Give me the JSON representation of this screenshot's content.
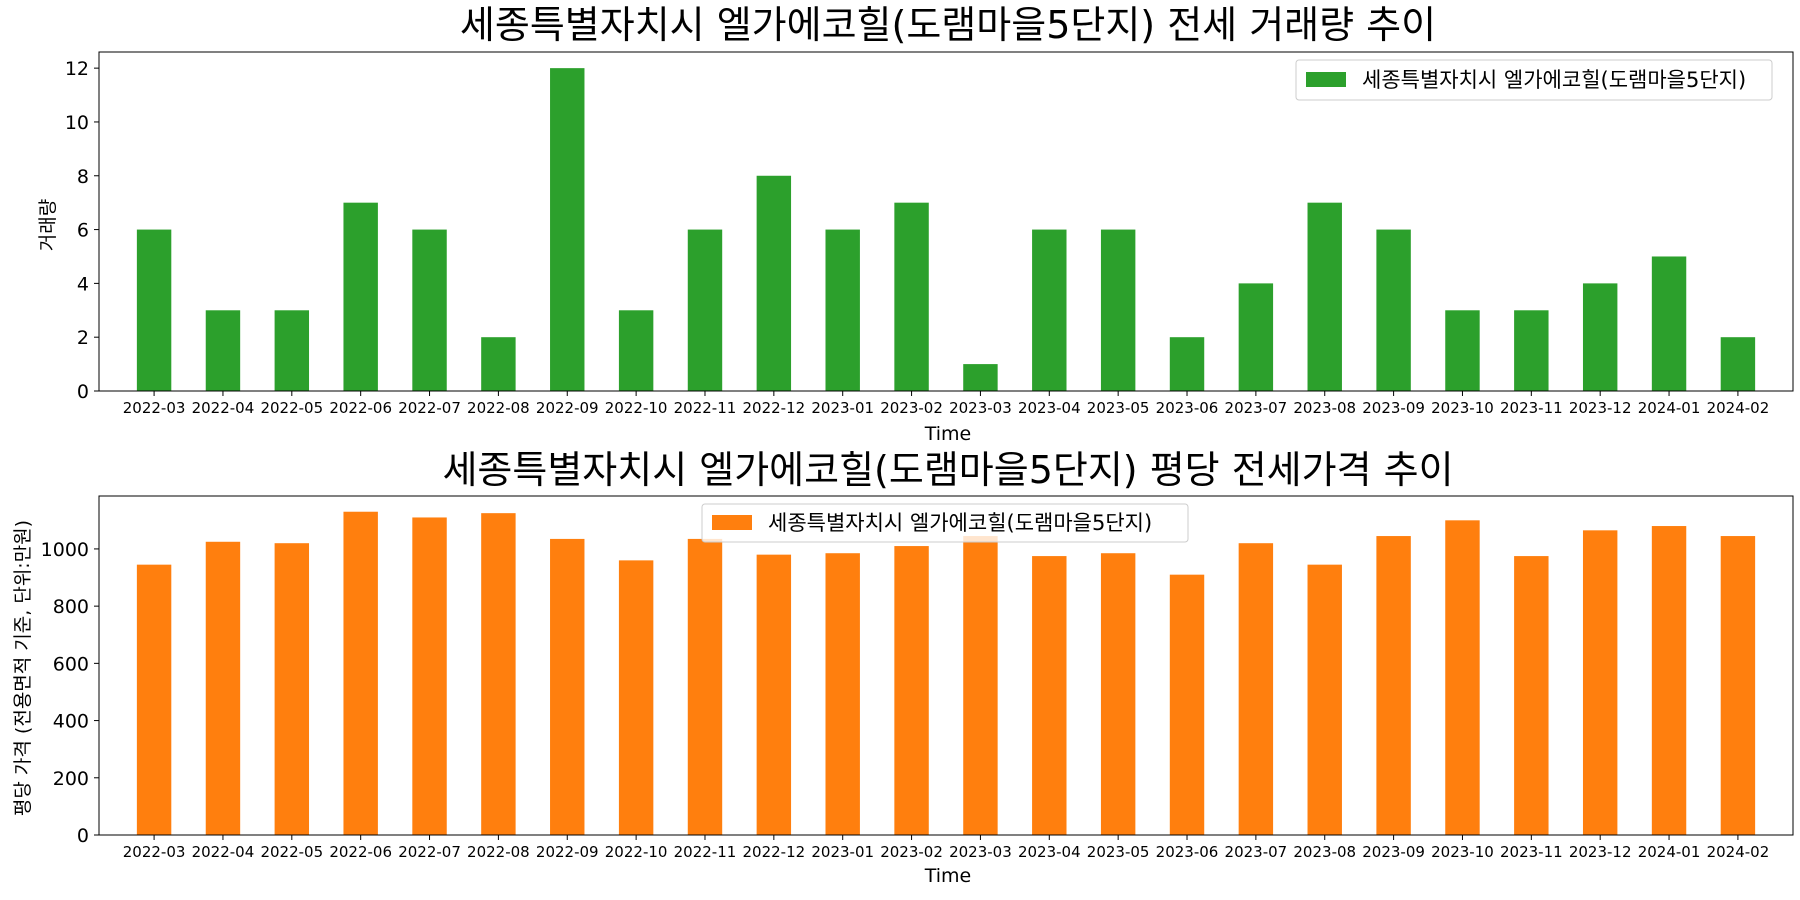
{
  "chart_data": [
    {
      "type": "bar",
      "title": "세종특별자치시 엘가에코힐(도램마을5단지) 전세 거래량 추이",
      "xlabel": "Time",
      "ylabel": "거래량",
      "ylim": [
        0,
        12.6
      ],
      "yticks": [
        0,
        2,
        4,
        6,
        8,
        10,
        12
      ],
      "color": "#2ca02c",
      "legend": {
        "label": "세종특별자치시 엘가에코힐(도램마을5단지)",
        "position": "upper right"
      },
      "categories": [
        "2022-03",
        "2022-04",
        "2022-05",
        "2022-06",
        "2022-07",
        "2022-08",
        "2022-09",
        "2022-10",
        "2022-11",
        "2022-12",
        "2023-01",
        "2023-02",
        "2023-03",
        "2023-04",
        "2023-05",
        "2023-06",
        "2023-07",
        "2023-08",
        "2023-09",
        "2023-10",
        "2023-11",
        "2023-12",
        "2024-01",
        "2024-02"
      ],
      "values": [
        6,
        3,
        3,
        7,
        6,
        2,
        12,
        3,
        6,
        8,
        6,
        7,
        1,
        6,
        6,
        2,
        4,
        7,
        6,
        3,
        3,
        4,
        5,
        2
      ]
    },
    {
      "type": "bar",
      "title": "세종특별자치시 엘가에코힐(도램마을5단지) 평당 전세가격 추이",
      "xlabel": "Time",
      "ylabel": "평당 가격 (전용면적 기준, 단위:만원)",
      "ylim": [
        0,
        1185
      ],
      "yticks": [
        0,
        200,
        400,
        600,
        800,
        1000
      ],
      "color": "#ff7f0e",
      "legend": {
        "label": "세종특별자치시 엘가에코힐(도램마을5단지)",
        "position": "upper center"
      },
      "categories": [
        "2022-03",
        "2022-04",
        "2022-05",
        "2022-06",
        "2022-07",
        "2022-08",
        "2022-09",
        "2022-10",
        "2022-11",
        "2022-12",
        "2023-01",
        "2023-02",
        "2023-03",
        "2023-04",
        "2023-05",
        "2023-06",
        "2023-07",
        "2023-08",
        "2023-09",
        "2023-10",
        "2023-11",
        "2023-12",
        "2024-01",
        "2024-02"
      ],
      "values": [
        945,
        1025,
        1020,
        1130,
        1110,
        1125,
        1035,
        960,
        1035,
        980,
        985,
        1010,
        1045,
        975,
        985,
        910,
        1020,
        945,
        1045,
        1100,
        975,
        1065,
        1080,
        1045
      ]
    }
  ]
}
